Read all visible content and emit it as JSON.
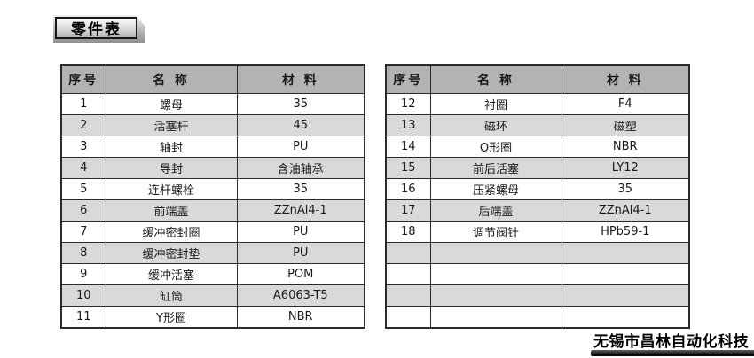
{
  "page": {
    "title": "零件表",
    "watermark": "无锡市昌林自动化科技"
  },
  "colors": {
    "header_bg": "#b3b3b3",
    "row_alt_bg": "#d9d9d9",
    "row_bg": "#ffffff",
    "border": "#2b2b2b"
  },
  "left_table": {
    "headers": [
      "序号",
      "名 称",
      "材 料"
    ],
    "rows": [
      [
        "1",
        "螺母",
        "35"
      ],
      [
        "2",
        "活塞杆",
        "45"
      ],
      [
        "3",
        "轴封",
        "PU"
      ],
      [
        "4",
        "导封",
        "含油轴承"
      ],
      [
        "5",
        "连杆螺栓",
        "35"
      ],
      [
        "6",
        "前端盖",
        "ZZnAl4-1"
      ],
      [
        "7",
        "缓冲密封圈",
        "PU"
      ],
      [
        "8",
        "缓冲密封垫",
        "PU"
      ],
      [
        "9",
        "缓冲活塞",
        "POM"
      ],
      [
        "10",
        "缸筒",
        "A6063-T5"
      ],
      [
        "11",
        "Y形圈",
        "NBR"
      ]
    ]
  },
  "right_table": {
    "headers": [
      "序号",
      "名 称",
      "材 料"
    ],
    "rows": [
      [
        "12",
        "衬圈",
        "F4"
      ],
      [
        "13",
        "磁环",
        "磁塑"
      ],
      [
        "14",
        "O形圈",
        "NBR"
      ],
      [
        "15",
        "前后活塞",
        "LY12"
      ],
      [
        "16",
        "压紧螺母",
        "35"
      ],
      [
        "17",
        "后端盖",
        "ZZnAl4-1"
      ],
      [
        "18",
        "调节阀针",
        "HPb59-1"
      ],
      [
        "",
        "",
        ""
      ],
      [
        "",
        "",
        ""
      ],
      [
        "",
        "",
        ""
      ],
      [
        "",
        "",
        ""
      ]
    ]
  }
}
